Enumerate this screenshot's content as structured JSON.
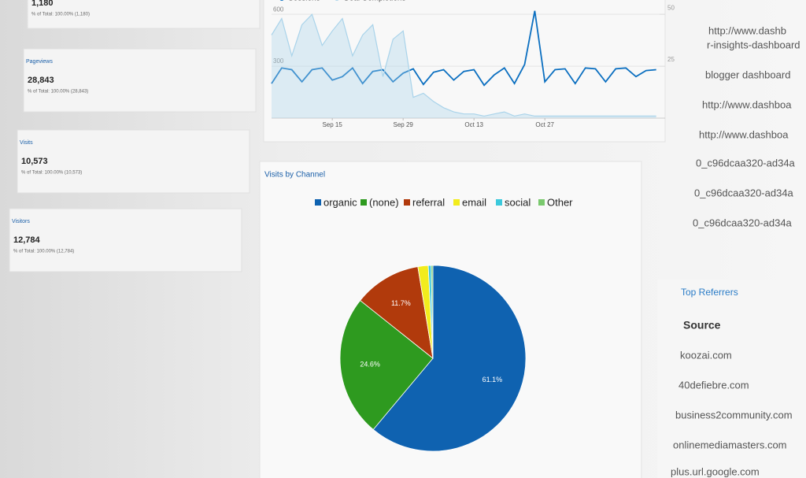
{
  "metrics": [
    {
      "value": "1,180",
      "total": "% of Total: 100.00% (1,180)"
    },
    {
      "title": "Pageviews",
      "value": "28,843",
      "total": "% of Total: 100.00% (28,843)"
    },
    {
      "title": "Visits",
      "value": "10,573",
      "total": "% of Total: 100.00% (10,573)"
    },
    {
      "title": "Visitors",
      "value": "12,784",
      "total": "% of Total: 100.00% (12,784)"
    }
  ],
  "chart_data": [
    {
      "type": "line",
      "categories": [
        null,
        null,
        null,
        null,
        null,
        null,
        "Sep 15",
        null,
        null,
        null,
        null,
        null,
        null,
        "Sep 29",
        null,
        null,
        null,
        null,
        null,
        null,
        "Oct 13",
        null,
        null,
        null,
        null,
        null,
        null,
        "Oct 27",
        null,
        null,
        null,
        null,
        null,
        null,
        null,
        null,
        null,
        null,
        null
      ],
      "series": [
        {
          "name": "Sessions",
          "color": "#0b6fc0",
          "values": [
            200,
            290,
            280,
            210,
            280,
            290,
            220,
            240,
            290,
            200,
            270,
            280,
            210,
            260,
            285,
            195,
            265,
            280,
            220,
            270,
            280,
            190,
            250,
            290,
            200,
            310,
            620,
            210,
            280,
            285,
            200,
            290,
            285,
            210,
            285,
            290,
            240,
            275,
            280
          ]
        },
        {
          "name": "Goal Completions",
          "color": "#a9d3ea",
          "axis": "y2",
          "values": [
            40,
            48,
            30,
            45,
            50,
            35,
            42,
            48,
            30,
            40,
            45,
            20,
            38,
            42,
            10,
            12,
            8,
            5,
            3,
            2,
            2,
            1,
            2,
            3,
            1,
            2,
            1,
            1,
            1,
            1,
            1,
            1,
            1,
            1,
            1,
            1,
            1,
            1,
            1
          ]
        }
      ],
      "ylim": [
        0,
        660
      ],
      "yticks": [
        300,
        600
      ],
      "y2lim": [
        0,
        55
      ],
      "y2ticks": [
        25,
        50
      ],
      "grid": true
    },
    {
      "type": "pie",
      "title": "Visits by Channel",
      "categories": [
        "organic",
        "(none)",
        "referral",
        "email",
        "social",
        "Other"
      ],
      "values": [
        61.1,
        24.6,
        11.7,
        1.8,
        0.5,
        0.3
      ],
      "value_labels": [
        "61.1%",
        "24.6%",
        "11.7%",
        null,
        null,
        null
      ],
      "colors": [
        "#0f62b0",
        "#2e9a1f",
        "#b13a0c",
        "#f2ec1c",
        "#3cc9dc",
        "#7ac96e"
      ],
      "legend": "top"
    }
  ],
  "pages": [
    "http://www.dashb",
    "r-insights-dashboard",
    "blogger dashboard",
    "http://www.dashboa",
    "http://www.dashboa",
    "0_c96dcaa320-ad34a",
    "0_c96dcaa320-ad34a",
    "0_c96dcaa320-ad34a"
  ],
  "referrers": {
    "title": "Top Referrers",
    "header": "Source",
    "rows": [
      "koozai.com",
      "40defiebre.com",
      "business2community.com",
      "onlinemediamasters.com",
      "plus.url.google.com"
    ]
  }
}
